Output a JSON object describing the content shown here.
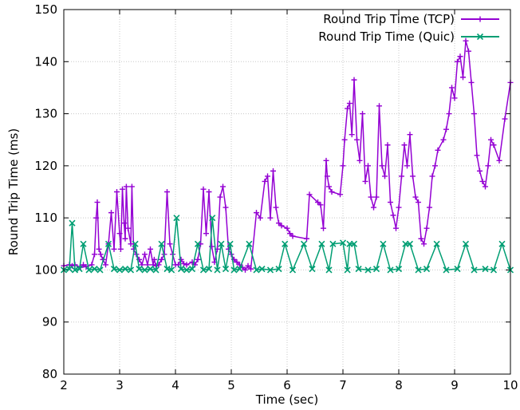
{
  "chart_data": {
    "type": "line",
    "xlabel": "Time (sec)",
    "ylabel": "Round Trip Time (ms)",
    "xlim": [
      2,
      10
    ],
    "ylim": [
      80,
      150
    ],
    "xticks": [
      2,
      3,
      4,
      5,
      6,
      7,
      8,
      9,
      10
    ],
    "yticks": [
      80,
      90,
      100,
      110,
      120,
      130,
      140,
      150
    ],
    "grid": true,
    "legend_position": "top-right",
    "series": [
      {
        "name": "Round Trip Time (TCP)",
        "color": "#9400d3",
        "marker": "plus",
        "x": [
          2.0,
          2.1,
          2.15,
          2.2,
          2.3,
          2.35,
          2.4,
          2.5,
          2.55,
          2.58,
          2.6,
          2.63,
          2.66,
          2.7,
          2.75,
          2.8,
          2.85,
          2.9,
          2.95,
          3.0,
          3.02,
          3.05,
          3.08,
          3.1,
          3.12,
          3.15,
          3.2,
          3.22,
          3.25,
          3.3,
          3.35,
          3.4,
          3.45,
          3.5,
          3.55,
          3.6,
          3.62,
          3.65,
          3.7,
          3.75,
          3.8,
          3.85,
          3.9,
          3.95,
          4.0,
          4.05,
          4.1,
          4.15,
          4.2,
          4.3,
          4.35,
          4.4,
          4.45,
          4.5,
          4.55,
          4.6,
          4.65,
          4.7,
          4.75,
          4.8,
          4.85,
          4.9,
          4.95,
          5.0,
          5.05,
          5.1,
          5.15,
          5.2,
          5.25,
          5.3,
          5.35,
          5.45,
          5.52,
          5.6,
          5.65,
          5.7,
          5.75,
          5.8,
          5.85,
          5.9,
          6.0,
          6.05,
          6.1,
          6.35,
          6.4,
          6.55,
          6.6,
          6.65,
          6.7,
          6.72,
          6.75,
          6.8,
          6.95,
          7.0,
          7.03,
          7.08,
          7.12,
          7.16,
          7.2,
          7.25,
          7.3,
          7.35,
          7.4,
          7.45,
          7.5,
          7.55,
          7.6,
          7.65,
          7.7,
          7.75,
          7.8,
          7.85,
          7.9,
          7.95,
          8.0,
          8.05,
          8.1,
          8.15,
          8.2,
          8.25,
          8.3,
          8.35,
          8.4,
          8.45,
          8.5,
          8.55,
          8.6,
          8.65,
          8.7,
          8.8,
          8.85,
          8.9,
          8.95,
          9.0,
          9.05,
          9.1,
          9.15,
          9.2,
          9.25,
          9.3,
          9.35,
          9.4,
          9.45,
          9.5,
          9.55,
          9.6,
          9.65,
          9.7,
          9.8,
          9.9,
          10.0
        ],
        "y": [
          100.8,
          101,
          100.8,
          101,
          100.5,
          101,
          100.6,
          101,
          103,
          110,
          113,
          104,
          103,
          102,
          101,
          105,
          111,
          104,
          115,
          107,
          104,
          115.5,
          109,
          106,
          116,
          108,
          105,
          116,
          104,
          103,
          102,
          101,
          103,
          101,
          104,
          101,
          102,
          100.8,
          101,
          102,
          103,
          115,
          105,
          103,
          101,
          101,
          102,
          101.2,
          101,
          101.5,
          101,
          102,
          105,
          115.5,
          107,
          115,
          104.5,
          101.5,
          104,
          114,
          116,
          112,
          104,
          103,
          102,
          101.5,
          101,
          100.5,
          100,
          100.8,
          100.2,
          111,
          110,
          117,
          118,
          110,
          119,
          112,
          109,
          108.5,
          108,
          107,
          106.5,
          106,
          114.5,
          113,
          112.5,
          108,
          121,
          118,
          116,
          115,
          114.5,
          120,
          125,
          131,
          132,
          126,
          136.5,
          125,
          121,
          130,
          117,
          120,
          114,
          112,
          114,
          131.5,
          120,
          118,
          124,
          113,
          110.5,
          108,
          112,
          118,
          124,
          120,
          126,
          118,
          114,
          113,
          106,
          105,
          108,
          112,
          118,
          120,
          123,
          125,
          127,
          130,
          135,
          133,
          140,
          141,
          137,
          144,
          142,
          136,
          130,
          122,
          119,
          117,
          116,
          120,
          125,
          124,
          121,
          129,
          136
        ]
      },
      {
        "name": "Round Trip Time (Quic)",
        "color": "#009e73",
        "marker": "cross",
        "x": [
          2.0,
          2.1,
          2.15,
          2.2,
          2.28,
          2.35,
          2.45,
          2.55,
          2.65,
          2.8,
          2.9,
          3.0,
          3.1,
          3.2,
          3.28,
          3.35,
          3.45,
          3.55,
          3.65,
          3.75,
          3.85,
          3.93,
          4.02,
          4.1,
          4.2,
          4.3,
          4.4,
          4.5,
          4.6,
          4.66,
          4.75,
          4.82,
          4.9,
          4.98,
          5.05,
          5.15,
          5.32,
          5.45,
          5.55,
          5.7,
          5.85,
          5.96,
          6.1,
          6.3,
          6.45,
          6.62,
          6.75,
          6.82,
          7.0,
          7.08,
          7.12,
          7.2,
          7.28,
          7.45,
          7.6,
          7.72,
          7.85,
          8.0,
          8.12,
          8.2,
          8.35,
          8.5,
          8.68,
          8.85,
          9.05,
          9.2,
          9.35,
          9.55,
          9.7,
          9.85,
          10.0
        ],
        "y": [
          100,
          100.2,
          109,
          100,
          100.2,
          105,
          100,
          100.2,
          100,
          105,
          100.2,
          100,
          100.2,
          100,
          105,
          100.2,
          100,
          100.2,
          100,
          105,
          100.2,
          100,
          110,
          100.2,
          100,
          100.2,
          105,
          100,
          100.2,
          110,
          100,
          105,
          100.2,
          105,
          100,
          100.2,
          105,
          100,
          100.2,
          100,
          100.2,
          105,
          100,
          105,
          100.2,
          105,
          100,
          105,
          105.2,
          100,
          105,
          105,
          100.2,
          100,
          100.2,
          105,
          100,
          100.2,
          105,
          105,
          100,
          100.2,
          105,
          100,
          100.2,
          105,
          100,
          100.2,
          100,
          105,
          100
        ]
      }
    ]
  }
}
